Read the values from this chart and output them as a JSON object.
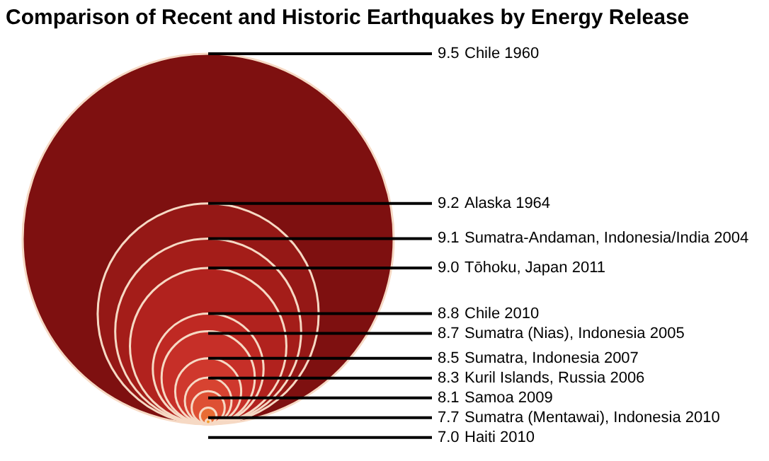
{
  "chart_data": {
    "type": "other",
    "title": "Comparison of Recent and Historic Earthquakes by Energy Release",
    "categories": [
      "Chile 1960",
      "Alaska 1964",
      "Sumatra-Andaman, Indonesia/India 2004",
      "Tōhoku, Japan 2011",
      "Chile 2010",
      "Sumatra (Nias), Indonesia 2005",
      "Sumatra, Indonesia 2007",
      "Kuril Islands, Russia 2006",
      "Samoa 2009",
      "Sumatra (Mentawai), Indonesia 2010",
      "Haiti 2010"
    ],
    "values": [
      9.5,
      9.2,
      9.1,
      9.0,
      8.8,
      8.7,
      8.5,
      8.3,
      8.1,
      7.7,
      7.0
    ],
    "value_labels": [
      "9.5",
      "9.2",
      "9.1",
      "9.0",
      "8.8",
      "8.7",
      "8.5",
      "8.3",
      "8.1",
      "7.7",
      "7.0"
    ],
    "colors": [
      "#7e1010",
      "#951816",
      "#a41d19",
      "#b1221e",
      "#bf2923",
      "#c62f28",
      "#cf382d",
      "#d74331",
      "#de5034",
      "#e86c34",
      "#f4a030"
    ]
  }
}
